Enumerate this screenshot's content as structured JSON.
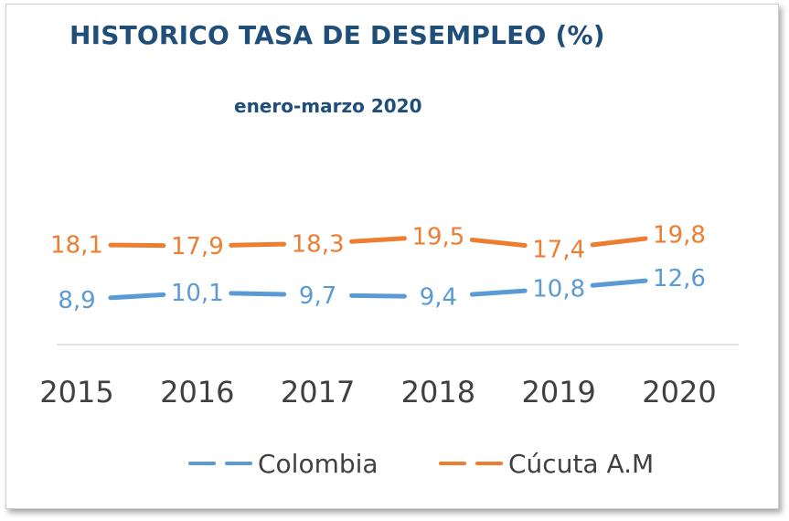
{
  "chart_data": {
    "type": "line",
    "title": "HISTORICO TASA DE DESEMPLEO (%)",
    "subtitle": "enero-marzo 2020",
    "categories": [
      "2015",
      "2016",
      "2017",
      "2018",
      "2019",
      "2020"
    ],
    "series": [
      {
        "name": "Colombia",
        "values": [
          8.9,
          10.1,
          9.7,
          9.4,
          10.8,
          12.6
        ],
        "labels": [
          "8,9",
          "10,1",
          "9,7",
          "9,4",
          "10,8",
          "12,6"
        ],
        "color": "#5b9bd5"
      },
      {
        "name": "Cúcuta A.M",
        "values": [
          18.1,
          17.9,
          18.3,
          19.5,
          17.4,
          19.8
        ],
        "labels": [
          "18,1",
          "17,9",
          "18,3",
          "19,5",
          "17,4",
          "19,8"
        ],
        "color": "#ed7d31"
      }
    ],
    "legend_position": "bottom",
    "grid": false
  }
}
